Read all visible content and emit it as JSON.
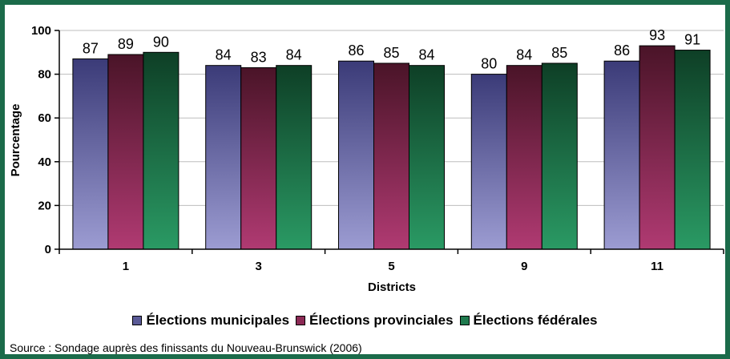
{
  "chart_data": {
    "type": "bar",
    "xlabel": "Districts",
    "ylabel": "Pourcentage",
    "categories": [
      "1",
      "3",
      "5",
      "9",
      "11"
    ],
    "ylim": [
      0,
      100
    ],
    "yticks": [
      0,
      20,
      40,
      60,
      80,
      100
    ],
    "grid": true,
    "legend_position": "bottom",
    "series": [
      {
        "name": "Élections municipales",
        "values": [
          87,
          84,
          86,
          80,
          86
        ],
        "color": "#5a5a96"
      },
      {
        "name": "Élections provinciales",
        "values": [
          89,
          83,
          85,
          84,
          93
        ],
        "color": "#8c2a55"
      },
      {
        "name": "Élections fédérales",
        "values": [
          90,
          84,
          84,
          85,
          91
        ],
        "color": "#1f7a4e"
      }
    ]
  },
  "source": "Source : Sondage auprès des finissants du Nouveau-Brunswick (2006)"
}
